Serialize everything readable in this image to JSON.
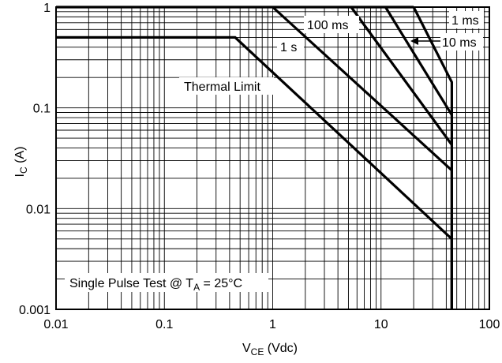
{
  "chart_data": {
    "type": "line",
    "x_scale": "log",
    "y_scale": "log",
    "xlim": [
      0.01,
      100
    ],
    "ylim": [
      0.001,
      1
    ],
    "grid": true,
    "xlabel": "V",
    "xlabel_sub": "CE",
    "xlabel_tail": " (Vdc)",
    "ylabel": "I",
    "ylabel_sub": "C",
    "ylabel_tail": " (A)",
    "x_ticks": [
      {
        "value": 0.01,
        "label": "0.01"
      },
      {
        "value": 0.1,
        "label": "0.1"
      },
      {
        "value": 1,
        "label": "1"
      },
      {
        "value": 10,
        "label": "10"
      },
      {
        "value": 100,
        "label": "100"
      }
    ],
    "y_ticks": [
      {
        "value": 0.001,
        "label": "0.001"
      },
      {
        "value": 0.01,
        "label": "0.01"
      },
      {
        "value": 0.1,
        "label": "0.1"
      },
      {
        "value": 1,
        "label": "1"
      }
    ],
    "series": [
      {
        "points": [
          [
            0.01,
            0.5
          ],
          [
            0.45,
            0.5
          ],
          [
            45,
            0.005
          ],
          [
            45,
            0.001
          ]
        ]
      },
      {
        "points": [
          [
            1,
            1
          ],
          [
            45,
            0.024
          ],
          [
            45,
            0.001
          ]
        ]
      },
      {
        "points": [
          [
            5.3,
            1
          ],
          [
            45,
            0.043
          ]
        ]
      },
      {
        "points": [
          [
            11,
            1
          ],
          [
            45,
            0.085
          ]
        ]
      },
      {
        "points": [
          [
            20,
            1
          ],
          [
            45,
            0.18
          ],
          [
            45,
            0.001
          ]
        ]
      },
      {
        "points": [
          [
            0.01,
            1
          ],
          [
            20,
            1
          ]
        ]
      }
    ],
    "annotations": {
      "thermal": "Thermal Limit",
      "s1": "1 s",
      "ms100": "100 ms",
      "ms1": "1 ms",
      "ms10": "10 ms",
      "note_main": "Single Pulse Test @ T",
      "note_sub": "A",
      "note_tail": " = 25°C"
    }
  }
}
